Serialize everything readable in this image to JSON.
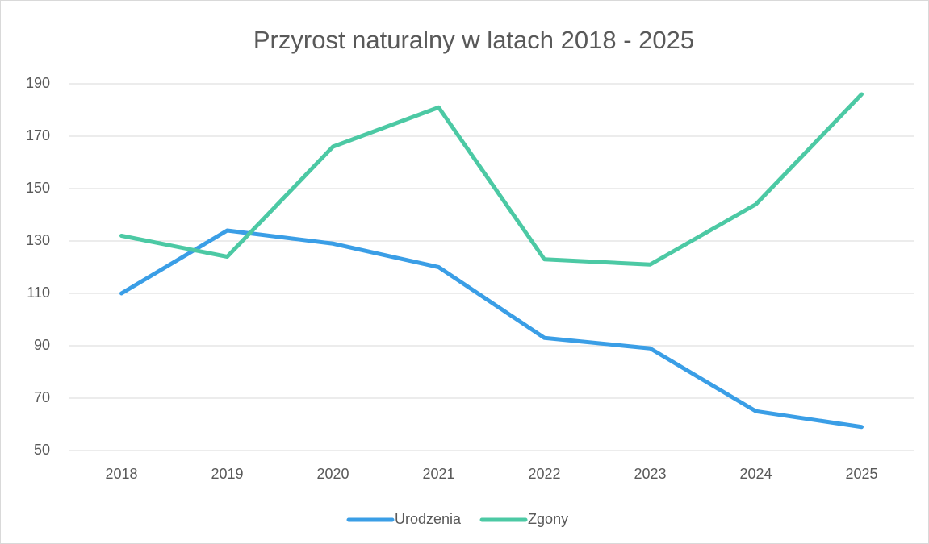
{
  "chart_data": {
    "type": "line",
    "title": "Przyrost naturalny w latach 2018 - 2025",
    "categories": [
      "2018",
      "2019",
      "2020",
      "2021",
      "2022",
      "2023",
      "2024",
      "2025"
    ],
    "series": [
      {
        "name": "Urodzenia",
        "color": "#3a9ee6",
        "values": [
          110,
          134,
          129,
          120,
          93,
          89,
          65,
          59
        ]
      },
      {
        "name": "Zgony",
        "color": "#4cc9a4",
        "values": [
          132,
          124,
          166,
          181,
          123,
          121,
          144,
          186
        ]
      }
    ],
    "ylim": [
      50,
      190
    ],
    "yticks": [
      50,
      70,
      90,
      110,
      130,
      150,
      170,
      190
    ],
    "grid": true,
    "legend": "bottom"
  }
}
